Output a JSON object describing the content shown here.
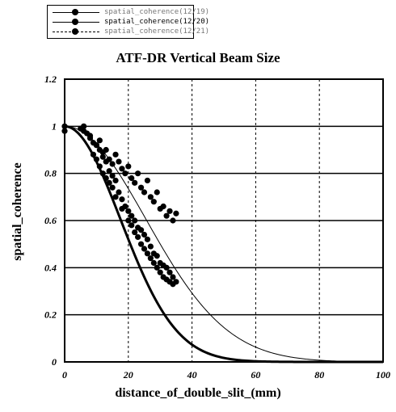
{
  "legend": {
    "entries": [
      {
        "label": "spatial_coherence(12/19)",
        "style": "solid",
        "faint": true
      },
      {
        "label": "spatial_coherence(12/20)",
        "style": "solid",
        "faint": false
      },
      {
        "label": "spatial_coherence(12/21)",
        "style": "dashed",
        "faint": true
      }
    ]
  },
  "chart_data": {
    "type": "scatter",
    "title": "ATF-DR Vertical Beam Size",
    "xlabel": "distance_of_double_slit_(mm)",
    "ylabel": "spatial_coherence",
    "xlim": [
      0,
      100
    ],
    "ylim": [
      0,
      1.2
    ],
    "x_ticks": [
      "0",
      "20",
      "40",
      "60",
      "80",
      "100"
    ],
    "y_ticks": [
      "0",
      "0.2",
      "0.4",
      "0.6",
      "0.8",
      "1",
      "1.2"
    ],
    "x_tick_values": [
      0,
      20,
      40,
      60,
      80,
      100
    ],
    "y_tick_values": [
      0,
      0.2,
      0.4,
      0.6,
      0.8,
      1.0,
      1.2
    ],
    "grid": true,
    "grid_x_style": "dashed",
    "grid_y_style": "solid",
    "legend_position": "top-left",
    "curves": [
      {
        "name": "spatial_coherence(12/20)",
        "sigma_mm": 17.5,
        "stroke": "#000000",
        "width": 3
      },
      {
        "name": "spatial_coherence(12/19)",
        "sigma_mm": 25.5,
        "stroke": "#000000",
        "width": 1
      }
    ],
    "series": [
      {
        "name": "spatial_coherence(12/20)",
        "x": [
          0,
          0,
          5,
          6,
          7,
          8,
          9,
          9,
          10,
          10,
          11,
          11,
          12,
          12,
          13,
          13,
          14,
          14,
          15,
          15,
          16,
          16,
          17,
          18,
          18,
          19,
          20,
          20,
          21,
          21,
          22,
          22,
          23,
          23,
          24,
          24,
          25,
          25,
          26,
          26,
          27,
          27,
          28,
          28,
          29,
          29,
          30,
          30,
          31,
          31,
          32,
          32,
          33,
          33,
          34,
          34,
          35
        ],
        "y": [
          0.98,
          1.0,
          0.99,
          1.0,
          0.97,
          0.95,
          0.93,
          0.88,
          0.92,
          0.86,
          0.9,
          0.83,
          0.87,
          0.8,
          0.85,
          0.78,
          0.81,
          0.76,
          0.79,
          0.74,
          0.77,
          0.7,
          0.72,
          0.69,
          0.65,
          0.66,
          0.64,
          0.6,
          0.62,
          0.58,
          0.6,
          0.55,
          0.57,
          0.53,
          0.56,
          0.5,
          0.54,
          0.48,
          0.52,
          0.46,
          0.49,
          0.44,
          0.46,
          0.42,
          0.45,
          0.4,
          0.42,
          0.38,
          0.41,
          0.36,
          0.4,
          0.35,
          0.38,
          0.34,
          0.36,
          0.33,
          0.34
        ]
      },
      {
        "name": "spatial_coherence(12/19)",
        "x": [
          6,
          8,
          10,
          11,
          12,
          13,
          14,
          15,
          16,
          17,
          18,
          19,
          20,
          21,
          22,
          23,
          24,
          25,
          26,
          27,
          28,
          29,
          30,
          31,
          32,
          33,
          34,
          35
        ],
        "y": [
          0.98,
          0.96,
          0.92,
          0.94,
          0.89,
          0.9,
          0.86,
          0.84,
          0.88,
          0.85,
          0.82,
          0.8,
          0.83,
          0.78,
          0.76,
          0.8,
          0.74,
          0.72,
          0.77,
          0.7,
          0.68,
          0.72,
          0.65,
          0.66,
          0.62,
          0.64,
          0.6,
          0.63
        ]
      }
    ]
  }
}
